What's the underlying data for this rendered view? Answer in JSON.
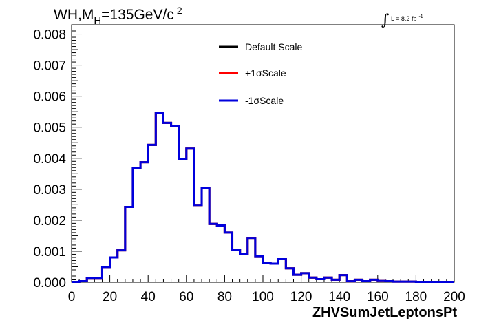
{
  "chart_data": {
    "type": "line",
    "title": {
      "main": "WH,M",
      "sub": "H",
      "rest": "=135GeV/c",
      "sup": "2"
    },
    "lumi": {
      "text": "L = 8.2 fb",
      "sup": "-1"
    },
    "xlabel": "ZHVSumJetLeptonsPt",
    "ylabel": "",
    "xlim": [
      0,
      200
    ],
    "ylim": [
      0,
      0.0083
    ],
    "x_ticks": [
      0,
      20,
      40,
      60,
      80,
      100,
      120,
      140,
      160,
      180,
      200
    ],
    "x_tick_labels": [
      "0",
      "20",
      "40",
      "60",
      "80",
      "100",
      "120",
      "140",
      "160",
      "180",
      "200"
    ],
    "y_ticks": [
      0,
      0.001,
      0.002,
      0.003,
      0.004,
      0.005,
      0.006,
      0.007,
      0.008
    ],
    "y_tick_labels": [
      "0.000",
      "0.001",
      "0.002",
      "0.003",
      "0.004",
      "0.005",
      "0.006",
      "0.007",
      "0.008"
    ],
    "bin_width": 4,
    "bin_edges_start": 0,
    "grid": false,
    "legend_position": "top-center",
    "series": [
      {
        "name": "Default Scale",
        "color": "#000000",
        "values": [
          1e-05,
          5e-05,
          0.00014,
          0.00014,
          0.00049,
          0.0008,
          0.00103,
          0.00243,
          0.00369,
          0.00387,
          0.00443,
          0.00547,
          0.00514,
          0.00503,
          0.00397,
          0.00431,
          0.00249,
          0.00304,
          0.00188,
          0.00183,
          0.0016,
          0.00104,
          0.0009,
          0.00143,
          0.00084,
          0.00061,
          0.0006,
          0.00075,
          0.00045,
          0.00024,
          0.00029,
          0.00015,
          0.0001,
          0.00015,
          8e-05,
          0.00023,
          3e-05,
          8e-05,
          4e-05,
          8e-05,
          6e-05,
          5e-05,
          2e-05,
          2e-05,
          2e-05,
          1e-05,
          1e-05,
          1e-05,
          1e-05,
          1e-05
        ]
      },
      {
        "name": "+1σScale",
        "color": "#ff0000",
        "values": [
          1e-05,
          5e-05,
          0.00014,
          0.00014,
          0.00049,
          0.0008,
          0.00103,
          0.00243,
          0.00369,
          0.00387,
          0.00443,
          0.00547,
          0.00514,
          0.00503,
          0.00397,
          0.00431,
          0.00249,
          0.00304,
          0.00188,
          0.00183,
          0.0016,
          0.00104,
          0.0009,
          0.00143,
          0.00084,
          0.00061,
          0.0006,
          0.00075,
          0.00045,
          0.00024,
          0.00029,
          0.00015,
          0.0001,
          0.00015,
          8e-05,
          0.00023,
          3e-05,
          8e-05,
          4e-05,
          8e-05,
          6e-05,
          5e-05,
          2e-05,
          2e-05,
          2e-05,
          1e-05,
          1e-05,
          1e-05,
          1e-05,
          1e-05
        ]
      },
      {
        "name": "-1σScale",
        "color": "#0000dd",
        "values": [
          1e-05,
          5e-05,
          0.00014,
          0.00014,
          0.00049,
          0.0008,
          0.00103,
          0.00243,
          0.00369,
          0.00387,
          0.00443,
          0.00547,
          0.00514,
          0.00503,
          0.00397,
          0.00431,
          0.00249,
          0.00304,
          0.00188,
          0.00183,
          0.0016,
          0.00104,
          0.0009,
          0.00143,
          0.00084,
          0.00061,
          0.0006,
          0.00075,
          0.00045,
          0.00024,
          0.00029,
          0.00015,
          0.0001,
          0.00015,
          8e-05,
          0.00023,
          3e-05,
          8e-05,
          4e-05,
          8e-05,
          6e-05,
          5e-05,
          2e-05,
          2e-05,
          2e-05,
          1e-05,
          1e-05,
          1e-05,
          1e-05,
          1e-05
        ]
      }
    ]
  }
}
